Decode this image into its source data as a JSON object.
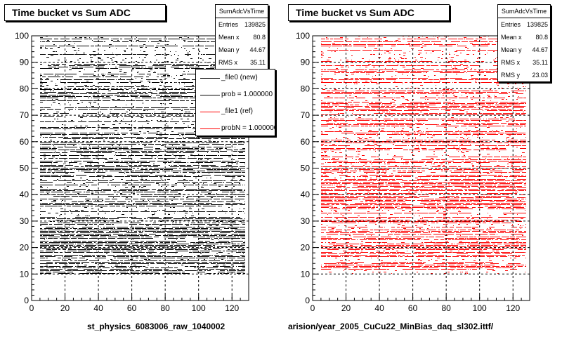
{
  "chart_data": [
    {
      "type": "scatter",
      "title": "Time bucket vs Sum ADC",
      "xlim": [
        0,
        130
      ],
      "ylim": [
        0,
        100
      ],
      "x_ticks": [
        0,
        20,
        40,
        60,
        80,
        100,
        120
      ],
      "y_ticks": [
        0,
        10,
        20,
        30,
        40,
        50,
        60,
        70,
        80,
        90,
        100
      ],
      "grid": true,
      "color": "#000000",
      "x_range": [
        5,
        128
      ],
      "y_range": [
        10,
        100
      ],
      "stats": {
        "name": "SumAdcVsTime",
        "rows": [
          {
            "label": "Entries",
            "value": "139825"
          },
          {
            "label": "Mean x",
            "value": "80.8"
          },
          {
            "label": "Mean y",
            "value": "44.67"
          },
          {
            "label": "RMS x",
            "value": "35.11"
          }
        ]
      },
      "legend": {
        "entries": [
          {
            "text": "_file0 (new)",
            "color": "#000000"
          },
          {
            "text": "prob = 1.000000",
            "color": "#000000"
          },
          {
            "text": "_file1 (ref)",
            "color": "#ff0000"
          },
          {
            "text": "probN = 1.000000",
            "color": "#ff0000"
          }
        ]
      },
      "file_label": "st_physics_6083006_raw_1040002"
    },
    {
      "type": "scatter",
      "title": "Time bucket vs Sum ADC",
      "xlim": [
        0,
        130
      ],
      "ylim": [
        0,
        100
      ],
      "x_ticks": [
        0,
        20,
        40,
        60,
        80,
        100,
        120
      ],
      "y_ticks": [
        0,
        10,
        20,
        30,
        40,
        50,
        60,
        70,
        80,
        90,
        100
      ],
      "grid": true,
      "color": "#ff0000",
      "x_range": [
        5,
        128
      ],
      "y_range": [
        10,
        100
      ],
      "stats": {
        "name": "SumAdcVsTime",
        "rows": [
          {
            "label": "Entries",
            "value": "139825"
          },
          {
            "label": "Mean x",
            "value": "80.8"
          },
          {
            "label": "Mean y",
            "value": "44.67"
          },
          {
            "label": "RMS x",
            "value": "35.11"
          },
          {
            "label": "RMS y",
            "value": "23.03"
          }
        ]
      },
      "file_label": "arision/year_2005_CuCu22_MinBias_daq_sl302.ittf/"
    }
  ]
}
